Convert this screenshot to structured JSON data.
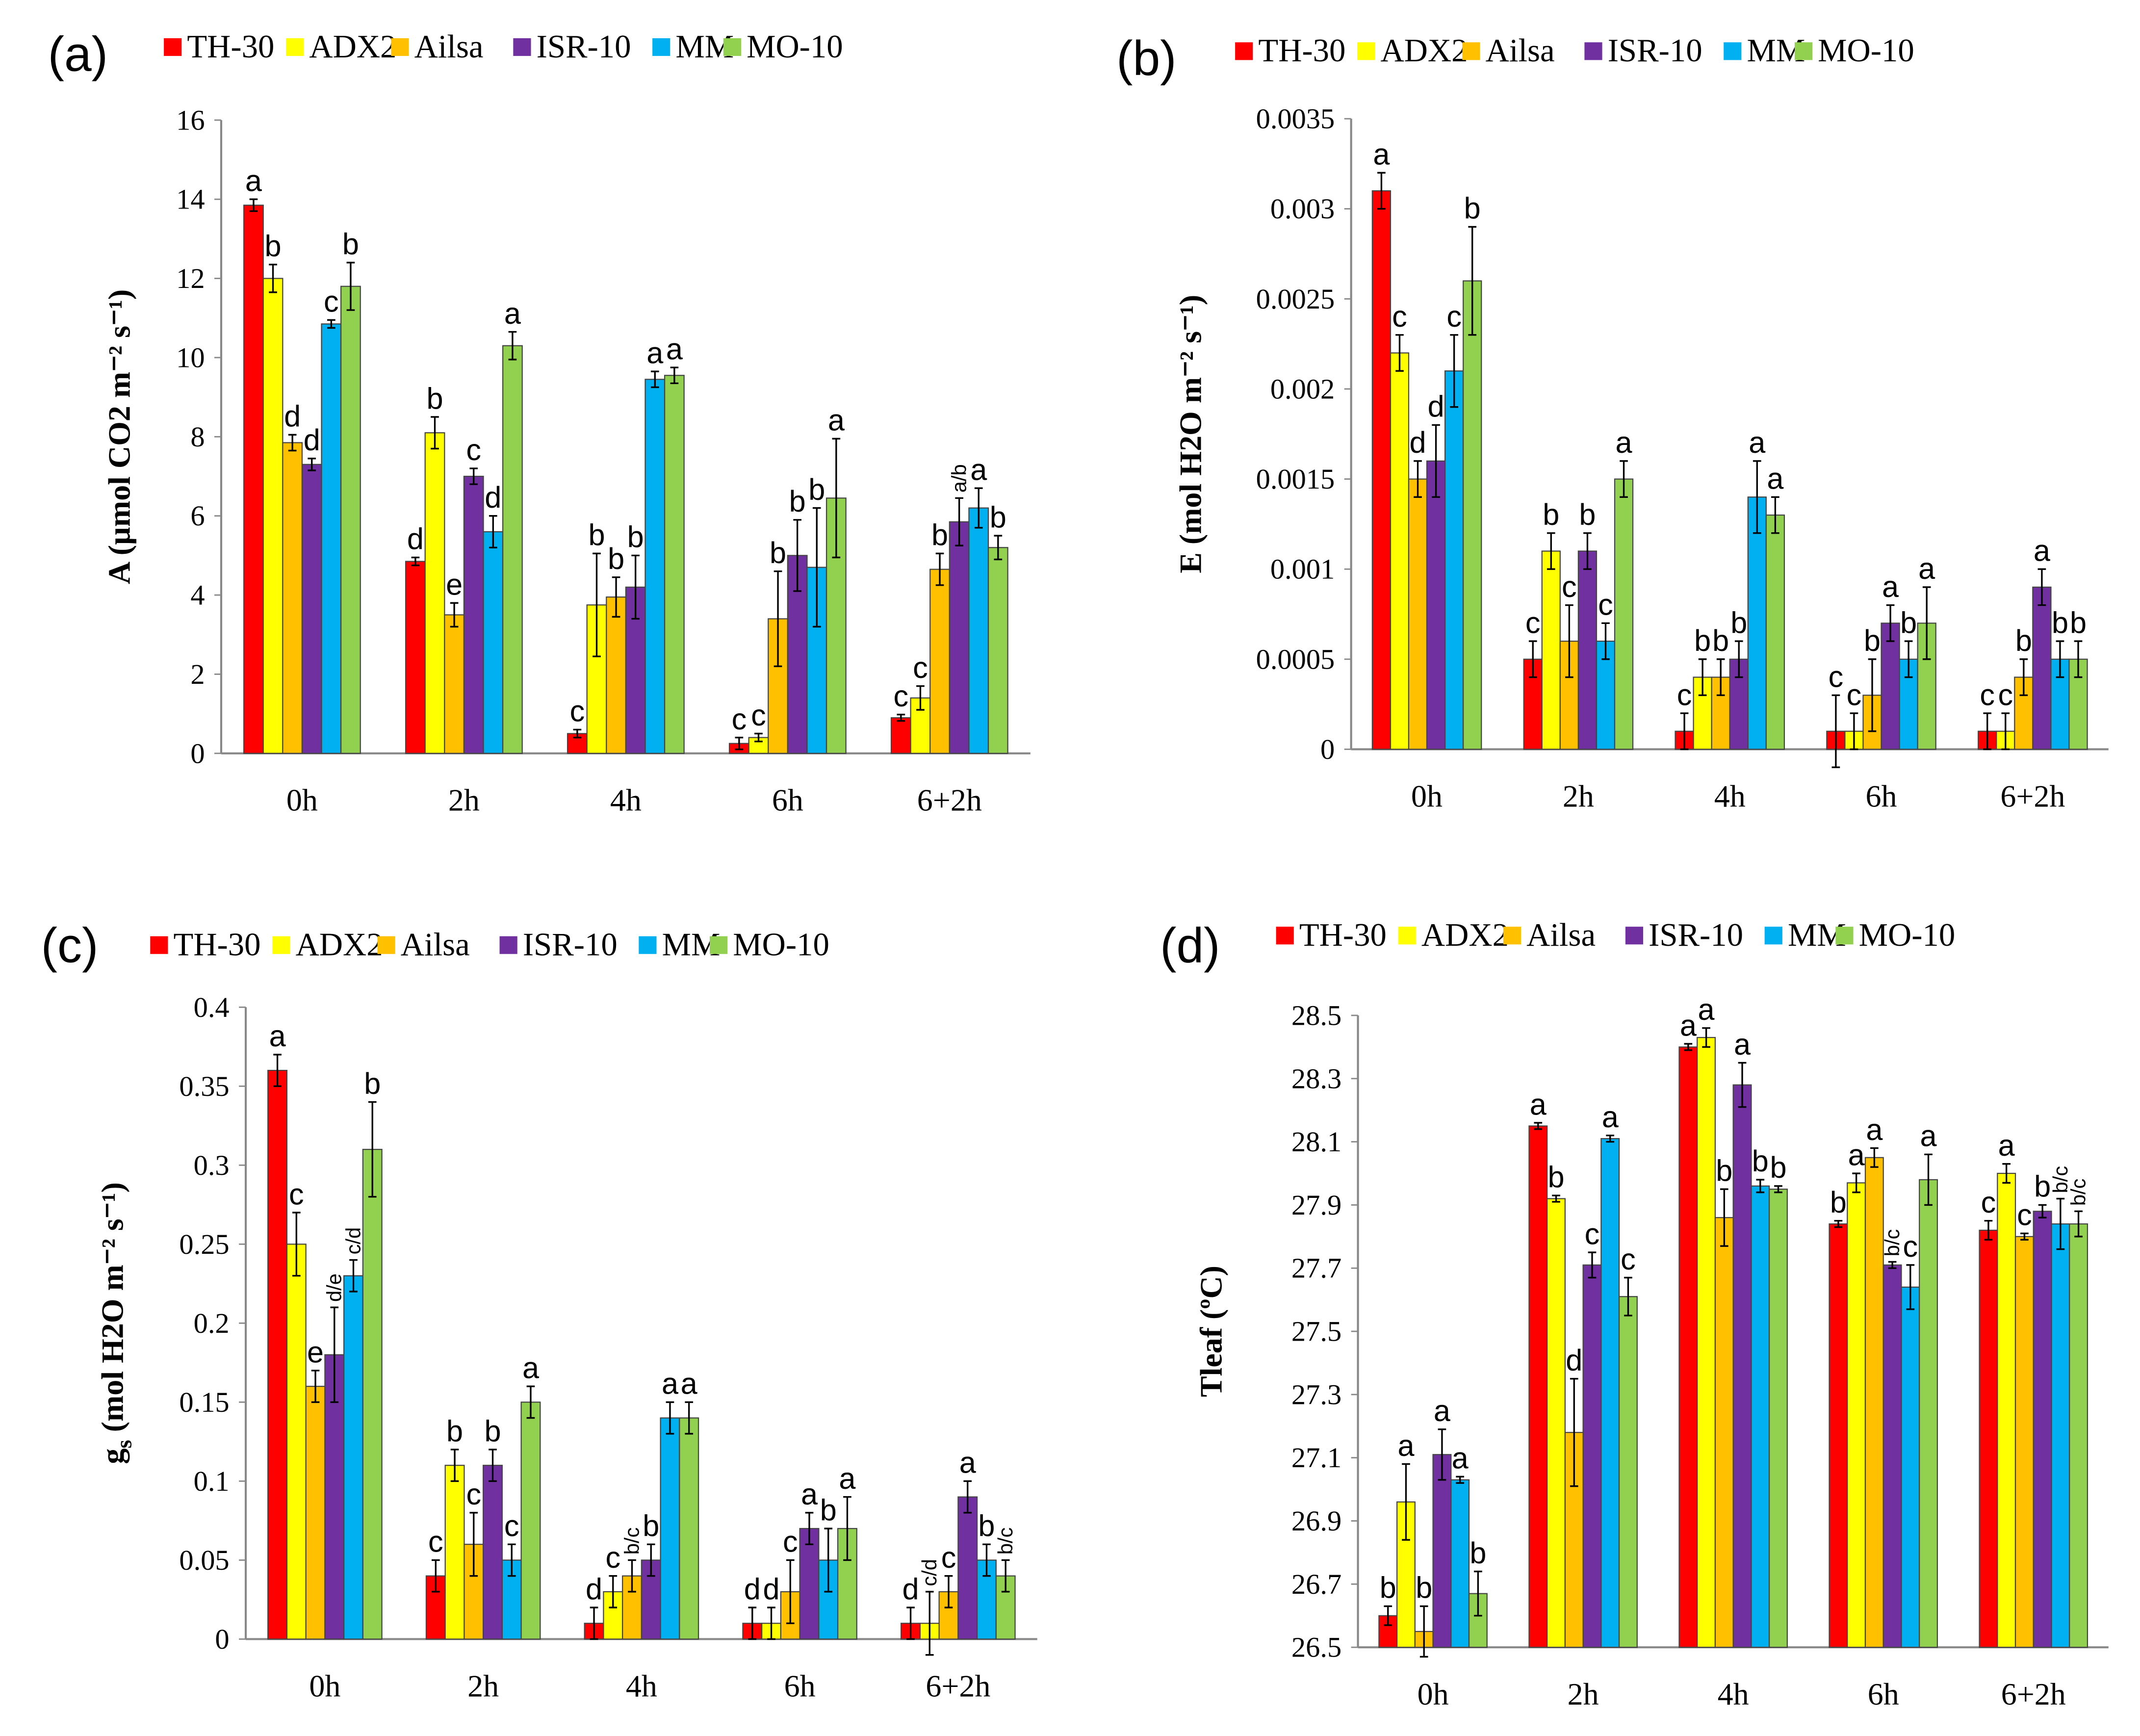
{
  "colors": {
    "TH-30": "#ff0000",
    "ADX2": "#ffff00",
    "Ailsa": "#ffc000",
    "ISR-10": "#7030a0",
    "MM": "#00b0f0",
    "MO-10": "#92d050"
  },
  "chart_data": [
    {
      "type": "bar",
      "panel": "(a)",
      "ylabel": "A (µmol CO2 m⁻² s⁻¹)",
      "ylabel_sub": "",
      "ylabel_rest": "",
      "ylim": [
        0,
        16
      ],
      "yticks": [
        0,
        2,
        4,
        6,
        8,
        10,
        12,
        14,
        16
      ],
      "ytick_labels": [
        "0",
        "2",
        "4",
        "6",
        "8",
        "10",
        "12",
        "14",
        "16"
      ],
      "categories": [
        "0h",
        "2h",
        "4h",
        "6h",
        "6+2h"
      ],
      "legend": [
        "TH-30",
        "ADX2",
        "Ailsa",
        "ISR-10",
        "MM",
        "MO-10"
      ],
      "legend_position": "top",
      "series": [
        {
          "name": "TH-30",
          "values": [
            13.85,
            4.85,
            0.5,
            0.25,
            0.9
          ],
          "errors": [
            0.15,
            0.1,
            0.1,
            0.15,
            0.08
          ],
          "letters": [
            "a",
            "d",
            "c",
            "c",
            "c"
          ]
        },
        {
          "name": "ADX2",
          "values": [
            12.0,
            8.1,
            3.75,
            0.4,
            1.4
          ],
          "errors": [
            0.35,
            0.4,
            1.3,
            0.1,
            0.3
          ],
          "letters": [
            "b",
            "b",
            "b",
            "c",
            "c"
          ]
        },
        {
          "name": "Ailsa",
          "values": [
            7.85,
            3.5,
            3.95,
            3.4,
            4.65
          ],
          "errors": [
            0.2,
            0.3,
            0.5,
            1.2,
            0.4
          ],
          "letters": [
            "d",
            "e",
            "b",
            "b",
            "b"
          ]
        },
        {
          "name": "ISR-10",
          "values": [
            7.3,
            7.0,
            4.2,
            5.0,
            5.85
          ],
          "errors": [
            0.15,
            0.2,
            0.8,
            0.9,
            0.6
          ],
          "letters": [
            "d",
            "c",
            "b",
            "b",
            "a/b"
          ]
        },
        {
          "name": "MM",
          "values": [
            10.85,
            5.6,
            9.45,
            4.7,
            6.2
          ],
          "errors": [
            0.1,
            0.4,
            0.2,
            1.5,
            0.5
          ],
          "letters": [
            "c",
            "d",
            "a",
            "b",
            "a"
          ]
        },
        {
          "name": "MO-10",
          "values": [
            11.8,
            10.3,
            9.55,
            6.45,
            5.2
          ],
          "errors": [
            0.6,
            0.35,
            0.2,
            1.5,
            0.3
          ],
          "letters": [
            "b",
            "a",
            "a",
            "a",
            "b"
          ]
        }
      ]
    },
    {
      "type": "bar",
      "panel": "(b)",
      "ylabel": "E (mol H2O m⁻² s⁻¹)",
      "ylabel_sub": "",
      "ylabel_rest": "",
      "ylim": [
        0,
        0.0035
      ],
      "yticks": [
        0,
        0.0005,
        0.001,
        0.0015,
        0.002,
        0.0025,
        0.003,
        0.0035
      ],
      "ytick_labels": [
        "0",
        "0.0005",
        "0.001",
        "0.0015",
        "0.002",
        "0.0025",
        "0.003",
        "0.0035"
      ],
      "categories": [
        "0h",
        "2h",
        "4h",
        "6h",
        "6+2h"
      ],
      "legend": [
        "TH-30",
        "ADX2",
        "Ailsa",
        "ISR-10",
        "MM",
        "MO-10"
      ],
      "legend_position": "top",
      "series": [
        {
          "name": "TH-30",
          "values": [
            0.0031,
            0.0005,
            0.0001,
            0.0001,
            0.0001
          ],
          "errors": [
            0.0001,
            0.0001,
            0.0001,
            0.0002,
            0.0001
          ],
          "letters": [
            "a",
            "c",
            "c",
            "c",
            "c"
          ]
        },
        {
          "name": "ADX2",
          "values": [
            0.0022,
            0.0011,
            0.0004,
            0.0001,
            0.0001
          ],
          "errors": [
            0.0001,
            0.0001,
            0.0001,
            0.0001,
            0.0001
          ],
          "letters": [
            "c",
            "b",
            "b",
            "c",
            "c"
          ]
        },
        {
          "name": "Ailsa",
          "values": [
            0.0015,
            0.0006,
            0.0004,
            0.0003,
            0.0004
          ],
          "errors": [
            0.0001,
            0.0002,
            0.0001,
            0.0002,
            0.0001
          ],
          "letters": [
            "d",
            "c",
            "b",
            "b",
            "b"
          ]
        },
        {
          "name": "ISR-10",
          "values": [
            0.0016,
            0.0011,
            0.0005,
            0.0007,
            0.0009
          ],
          "errors": [
            0.0002,
            0.0001,
            0.0001,
            0.0001,
            0.0001
          ],
          "letters": [
            "d",
            "b",
            "b",
            "a",
            "a"
          ]
        },
        {
          "name": "MM",
          "values": [
            0.0021,
            0.0006,
            0.0014,
            0.0005,
            0.0005
          ],
          "errors": [
            0.0002,
            0.0001,
            0.0002,
            0.0001,
            0.0001
          ],
          "letters": [
            "c",
            "c",
            "a",
            "b",
            "b"
          ]
        },
        {
          "name": "MO-10",
          "values": [
            0.0026,
            0.0015,
            0.0013,
            0.0007,
            0.0005
          ],
          "errors": [
            0.0003,
            0.0001,
            0.0001,
            0.0002,
            0.0001
          ],
          "letters": [
            "b",
            "a",
            "a",
            "a",
            "b"
          ]
        }
      ]
    },
    {
      "type": "bar",
      "panel": "(c)",
      "ylabel": "g",
      "ylabel_sub": "s",
      "ylabel_rest": " (mol H2O m⁻² s⁻¹)",
      "ylim": [
        0,
        0.4
      ],
      "yticks": [
        0,
        0.05,
        0.1,
        0.15,
        0.2,
        0.25,
        0.3,
        0.35,
        0.4
      ],
      "ytick_labels": [
        "0",
        "0.05",
        "0.1",
        "0.15",
        "0.2",
        "0.25",
        "0.3",
        "0.35",
        "0.4"
      ],
      "categories": [
        "0h",
        "2h",
        "4h",
        "6h",
        "6+2h"
      ],
      "legend": [
        "TH-30",
        "ADX2",
        "Ailsa",
        "ISR-10",
        "MM",
        "MO-10"
      ],
      "legend_position": "top",
      "series": [
        {
          "name": "TH-30",
          "values": [
            0.36,
            0.04,
            0.01,
            0.01,
            0.01
          ],
          "errors": [
            0.01,
            0.01,
            0.01,
            0.01,
            0.01
          ],
          "letters": [
            "a",
            "c",
            "d",
            "d",
            "d"
          ]
        },
        {
          "name": "ADX2",
          "values": [
            0.25,
            0.11,
            0.03,
            0.01,
            0.01
          ],
          "errors": [
            0.02,
            0.01,
            0.01,
            0.01,
            0.02
          ],
          "letters": [
            "c",
            "b",
            "c",
            "d",
            "c/d"
          ]
        },
        {
          "name": "Ailsa",
          "values": [
            0.16,
            0.06,
            0.04,
            0.03,
            0.03
          ],
          "errors": [
            0.01,
            0.02,
            0.01,
            0.02,
            0.01
          ],
          "letters": [
            "e",
            "c",
            "b/c",
            "c",
            "c"
          ]
        },
        {
          "name": "ISR-10",
          "values": [
            0.18,
            0.11,
            0.05,
            0.07,
            0.09
          ],
          "errors": [
            0.03,
            0.01,
            0.01,
            0.01,
            0.01
          ],
          "letters": [
            "d/e",
            "b",
            "b",
            "a",
            "a"
          ]
        },
        {
          "name": "MM",
          "values": [
            0.23,
            0.05,
            0.14,
            0.05,
            0.05
          ],
          "errors": [
            0.01,
            0.01,
            0.01,
            0.02,
            0.01
          ],
          "letters": [
            "c/d",
            "c",
            "a",
            "b",
            "b"
          ]
        },
        {
          "name": "MO-10",
          "values": [
            0.31,
            0.15,
            0.14,
            0.07,
            0.04
          ],
          "errors": [
            0.03,
            0.01,
            0.01,
            0.02,
            0.01
          ],
          "letters": [
            "b",
            "a",
            "a",
            "a",
            "b/c"
          ]
        }
      ]
    },
    {
      "type": "bar",
      "panel": "(d)",
      "ylabel": "Tleaf (ºC)",
      "ylabel_sub": "",
      "ylabel_rest": "",
      "ylim": [
        26.5,
        28.5
      ],
      "yticks": [
        26.5,
        26.7,
        26.9,
        27.1,
        27.3,
        27.5,
        27.7,
        27.9,
        28.1,
        28.3,
        28.5
      ],
      "ytick_labels": [
        "26.5",
        "26.7",
        "26.9",
        "27.1",
        "27.3",
        "27.5",
        "27.7",
        "27.9",
        "28.1",
        "28.3",
        "28.5"
      ],
      "categories": [
        "0h",
        "2h",
        "4h",
        "6h",
        "6+2h"
      ],
      "legend": [
        "TH-30",
        "ADX2",
        "Ailsa",
        "ISR-10",
        "MM",
        "MO-10"
      ],
      "legend_position": "top",
      "series": [
        {
          "name": "TH-30",
          "values": [
            26.6,
            28.15,
            28.4,
            27.84,
            27.82
          ],
          "errors": [
            0.03,
            0.01,
            0.01,
            0.01,
            0.03
          ],
          "letters": [
            "b",
            "a",
            "a",
            "b",
            "c"
          ]
        },
        {
          "name": "ADX2",
          "values": [
            26.96,
            27.92,
            28.43,
            27.97,
            28.0
          ],
          "errors": [
            0.12,
            0.01,
            0.03,
            0.03,
            0.03
          ],
          "letters": [
            "a",
            "b",
            "a",
            "a",
            "a"
          ]
        },
        {
          "name": "Ailsa",
          "values": [
            26.55,
            27.18,
            27.86,
            28.05,
            27.8
          ],
          "errors": [
            0.08,
            0.17,
            0.09,
            0.03,
            0.01
          ],
          "letters": [
            "b",
            "d",
            "b",
            "a",
            "c"
          ]
        },
        {
          "name": "ISR-10",
          "values": [
            27.11,
            27.71,
            28.28,
            27.71,
            27.88
          ],
          "errors": [
            0.08,
            0.04,
            0.07,
            0.01,
            0.02
          ],
          "letters": [
            "a",
            "c",
            "a",
            "b/c",
            "b"
          ]
        },
        {
          "name": "MM",
          "values": [
            27.03,
            28.11,
            27.96,
            27.64,
            27.84
          ],
          "errors": [
            0.01,
            0.01,
            0.02,
            0.07,
            0.08
          ],
          "letters": [
            "a",
            "a",
            "b",
            "c",
            "b/c"
          ]
        },
        {
          "name": "MO-10",
          "values": [
            26.67,
            27.61,
            27.95,
            27.98,
            27.84
          ],
          "errors": [
            0.07,
            0.06,
            0.01,
            0.08,
            0.04
          ],
          "letters": [
            "b",
            "c",
            "b",
            "a",
            "b/c"
          ]
        }
      ]
    }
  ]
}
